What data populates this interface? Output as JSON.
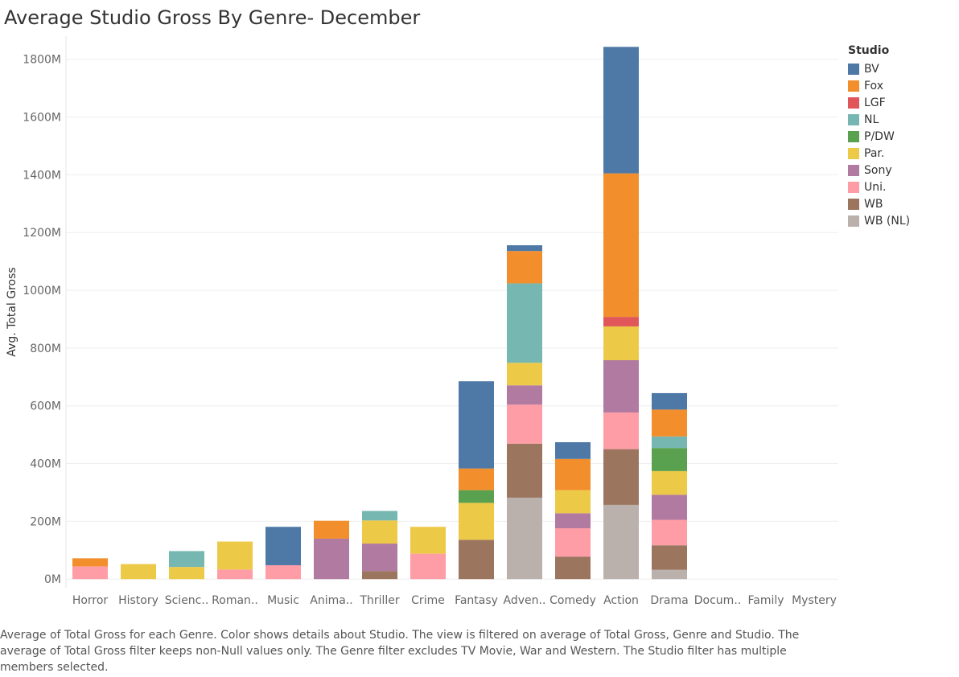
{
  "chart_data": {
    "type": "bar",
    "stacked": true,
    "title": "Average Studio Gross By Genre- December",
    "xlabel": "",
    "ylabel": "Avg. Total Gross",
    "ylim": [
      -30,
      1880
    ],
    "yticks": [
      0,
      200,
      400,
      600,
      800,
      1000,
      1200,
      1400,
      1600,
      1800
    ],
    "ytick_labels": [
      "0M",
      "200M",
      "400M",
      "600M",
      "800M",
      "1000M",
      "1200M",
      "1400M",
      "1600M",
      "1800M"
    ],
    "categories": [
      "Horror",
      "History",
      "Scienc..",
      "Roman..",
      "Music",
      "Anima..",
      "Thriller",
      "Crime",
      "Fantasy",
      "Adven..",
      "Comedy",
      "Action",
      "Drama",
      "Docum..",
      "Family",
      "Mystery"
    ],
    "series": [
      {
        "name": "WB (NL)",
        "color": "#BAB0AC",
        "values": [
          0,
          0,
          0,
          0,
          0,
          0,
          0,
          0,
          0,
          282,
          0,
          257,
          32,
          0,
          0,
          0
        ]
      },
      {
        "name": "WB",
        "color": "#9C755F",
        "values": [
          0,
          0,
          0,
          0,
          0,
          0,
          28,
          0,
          136,
          187,
          78,
          193,
          85,
          0,
          0,
          0
        ]
      },
      {
        "name": "Uni.",
        "color": "#FF9DA7",
        "values": [
          44,
          0,
          0,
          33,
          48,
          0,
          0,
          88,
          0,
          135,
          98,
          127,
          88,
          0,
          0,
          0
        ]
      },
      {
        "name": "Sony",
        "color": "#B07AA1",
        "values": [
          0,
          0,
          0,
          0,
          0,
          140,
          95,
          0,
          0,
          67,
          52,
          181,
          87,
          0,
          0,
          0
        ]
      },
      {
        "name": "Par.",
        "color": "#EDC948",
        "values": [
          0,
          52,
          42,
          97,
          0,
          0,
          80,
          93,
          128,
          78,
          80,
          117,
          82,
          0,
          0,
          0
        ]
      },
      {
        "name": "P/DW",
        "color": "#59A14F",
        "values": [
          0,
          0,
          0,
          0,
          0,
          0,
          0,
          0,
          44,
          0,
          0,
          0,
          80,
          0,
          0,
          0
        ]
      },
      {
        "name": "NL",
        "color": "#76B7B2",
        "values": [
          0,
          0,
          55,
          0,
          0,
          0,
          33,
          0,
          0,
          275,
          0,
          0,
          40,
          0,
          0,
          0
        ]
      },
      {
        "name": "LGF",
        "color": "#E15759",
        "values": [
          0,
          0,
          0,
          0,
          0,
          0,
          0,
          0,
          0,
          0,
          0,
          33,
          0,
          0,
          0,
          0
        ]
      },
      {
        "name": "Fox",
        "color": "#F28E2B",
        "values": [
          28,
          0,
          0,
          0,
          0,
          62,
          0,
          0,
          75,
          112,
          108,
          497,
          93,
          0,
          0,
          0
        ]
      },
      {
        "name": "BV",
        "color": "#4E79A7",
        "values": [
          0,
          0,
          0,
          0,
          133,
          0,
          0,
          0,
          302,
          20,
          58,
          438,
          57,
          0,
          0,
          0
        ]
      }
    ]
  },
  "legend": {
    "title": "Studio",
    "items": [
      {
        "label": "BV",
        "color": "#4E79A7"
      },
      {
        "label": "Fox",
        "color": "#F28E2B"
      },
      {
        "label": "LGF",
        "color": "#E15759"
      },
      {
        "label": "NL",
        "color": "#76B7B2"
      },
      {
        "label": "P/DW",
        "color": "#59A14F"
      },
      {
        "label": "Par.",
        "color": "#EDC948"
      },
      {
        "label": "Sony",
        "color": "#B07AA1"
      },
      {
        "label": "Uni.",
        "color": "#FF9DA7"
      },
      {
        "label": "WB",
        "color": "#9C755F"
      },
      {
        "label": "WB (NL)",
        "color": "#BAB0AC"
      }
    ]
  },
  "caption": "Average of Total Gross for each Genre.  Color shows details about Studio. The view is filtered on average of Total Gross, Genre and Studio. The average of Total Gross filter keeps non-Null values only. The Genre filter excludes TV Movie, War and Western. The Studio filter has multiple members selected."
}
